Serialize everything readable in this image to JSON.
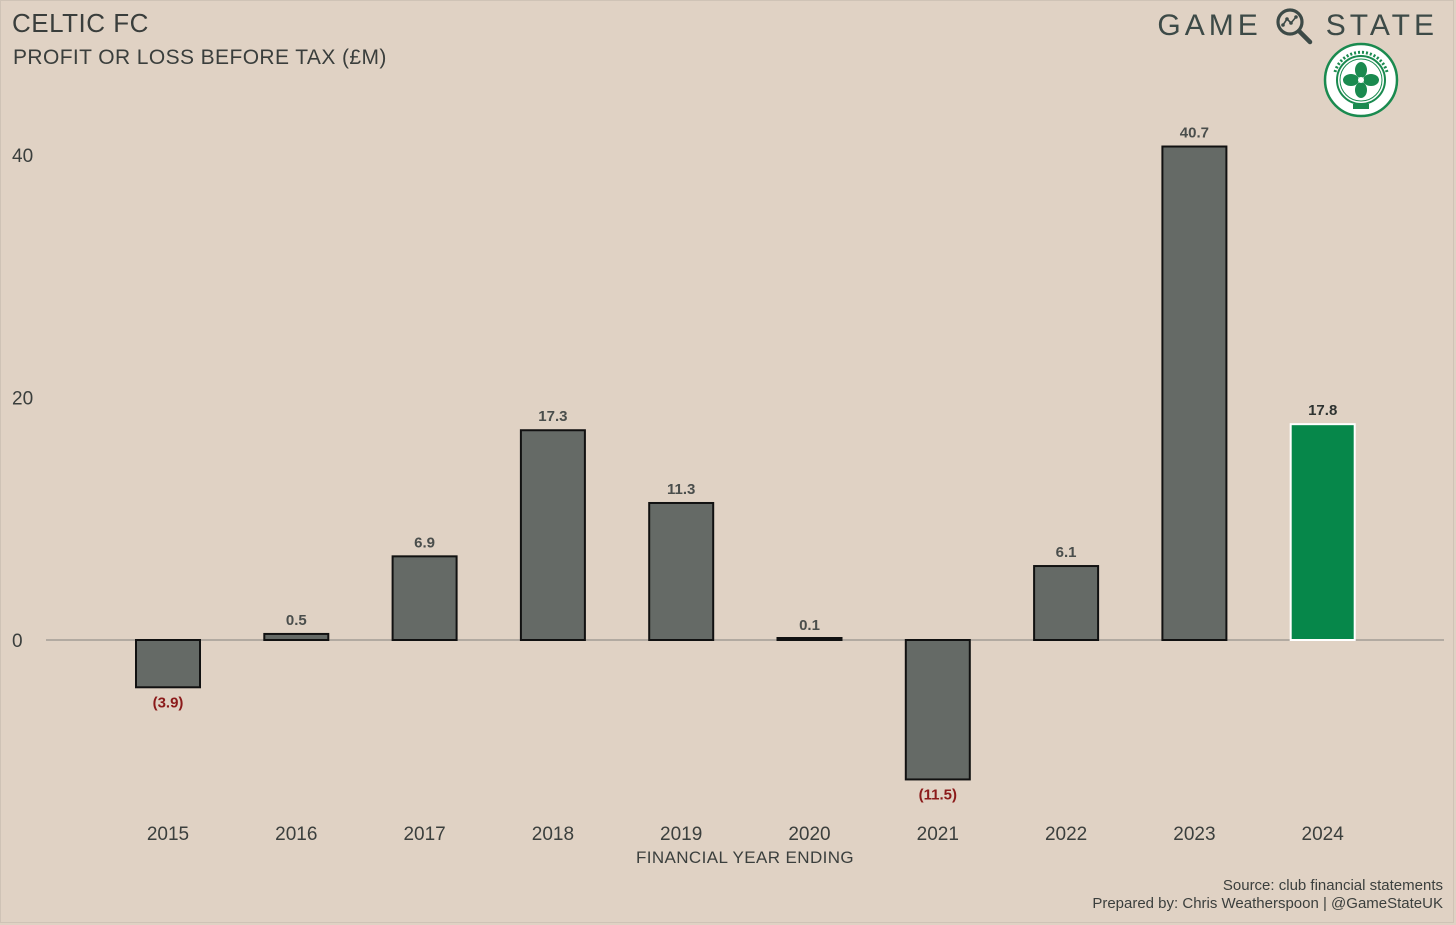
{
  "header": {
    "title": "CELTIC FC",
    "subtitle": "PROFIT OR LOSS BEFORE TAX (£M)",
    "brand_left": "GAME",
    "brand_right": "STATE"
  },
  "footer": {
    "source": "Source: club financial statements",
    "prepared": "Prepared by: Chris Weatherspoon | @GameStateUK"
  },
  "colors": {
    "background": "#e0d2c4",
    "bar": "#656a66",
    "highlight": "#06874a",
    "negative_label": "#8b1a1a",
    "label": "#4a4e4c",
    "zero_line": "#a39d95"
  },
  "chart_data": {
    "type": "bar",
    "title": "CELTIC FC",
    "subtitle": "PROFIT OR LOSS BEFORE TAX (£M)",
    "xlabel": "FINANCIAL YEAR ENDING",
    "ylabel": "",
    "categories": [
      "2015",
      "2016",
      "2017",
      "2018",
      "2019",
      "2020",
      "2021",
      "2022",
      "2023",
      "2024"
    ],
    "values": [
      -3.9,
      0.5,
      6.9,
      17.3,
      11.3,
      0.1,
      -11.5,
      6.1,
      40.7,
      17.8
    ],
    "data_labels": [
      "(3.9)",
      "0.5",
      "6.9",
      "17.3",
      "11.3",
      "0.1",
      "(11.5)",
      "6.1",
      "40.7",
      "17.8"
    ],
    "highlight_category": "2024",
    "yticks": [
      0,
      20,
      40
    ],
    "ylim": [
      -15,
      45
    ],
    "grid": false,
    "legend": "none"
  }
}
